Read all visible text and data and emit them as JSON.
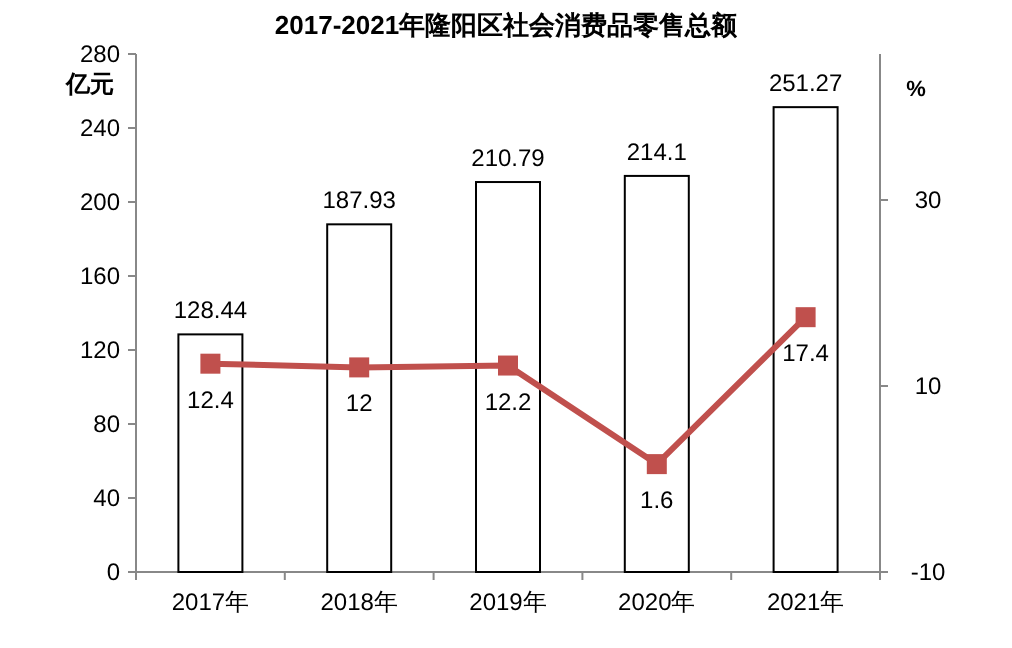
{
  "chart_data": {
    "type": "bar",
    "title": "2017-2021年隆阳区社会消费品零售总额",
    "ylabel": "亿元",
    "y2label": "%",
    "categories": [
      "2017年",
      "2018年",
      "2019年",
      "2020年",
      "2021年"
    ],
    "series": [
      {
        "color": "#ffffff",
        "values": [
          128.44,
          187.93,
          210.79,
          214.1,
          251.27
        ]
      },
      {
        "type": "line",
        "axis": "y2",
        "color": "#c0504d",
        "values": [
          12.4,
          12,
          12.2,
          1.6,
          17.4
        ]
      }
    ],
    "ylim": [
      0,
      280
    ],
    "yticks": [
      0,
      40,
      80,
      120,
      160,
      200,
      240,
      280
    ],
    "y2lim": [
      -10,
      45.7
    ],
    "y2ticks": [
      -10,
      10,
      30
    ],
    "marker": "square",
    "line_style": "solid",
    "data_labels": true,
    "grid": false
  }
}
